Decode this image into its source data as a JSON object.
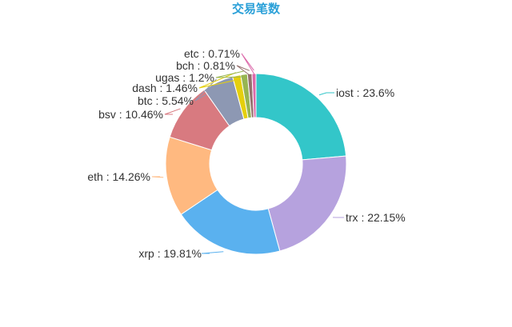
{
  "chart_data": {
    "type": "pie",
    "title": "交易笔数",
    "title_color": "#2aa0d8",
    "slices": [
      {
        "name": "iost",
        "value": 23.6,
        "label": "iost : 23.6%",
        "color": "#33c6c9"
      },
      {
        "name": "trx",
        "value": 22.15,
        "label": "trx : 22.15%",
        "color": "#b6a2de"
      },
      {
        "name": "xrp",
        "value": 19.81,
        "label": "xrp : 19.81%",
        "color": "#5ab1ef"
      },
      {
        "name": "eth",
        "value": 14.26,
        "label": "eth : 14.26%",
        "color": "#ffb980"
      },
      {
        "name": "bsv",
        "value": 10.46,
        "label": "bsv : 10.46%",
        "color": "#d87a80"
      },
      {
        "name": "btc",
        "value": 5.54,
        "label": "btc : 5.54%",
        "color": "#8d98b3"
      },
      {
        "name": "dash",
        "value": 1.46,
        "label": "dash : 1.46%",
        "color": "#e5cf0d"
      },
      {
        "name": "ugas",
        "value": 1.2,
        "label": "ugas : 1.2%",
        "color": "#97b552"
      },
      {
        "name": "bch",
        "value": 0.81,
        "label": "bch : 0.81%",
        "color": "#95706d"
      },
      {
        "name": "etc",
        "value": 0.71,
        "label": "etc : 0.71%",
        "color": "#dc69aa"
      }
    ]
  }
}
